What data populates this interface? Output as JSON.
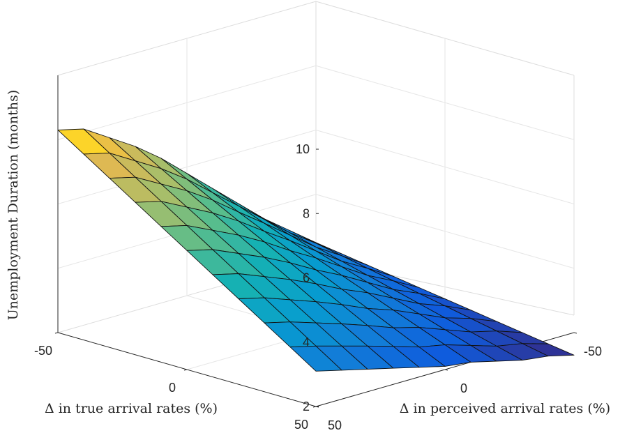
{
  "chart_data": {
    "type": "surface",
    "zlabel": "Unemployment Duration (months)",
    "xlabel": "Δ in true arrival rates (%)",
    "ylabel": "Δ in perceived arrival rates (%)",
    "xlim": [
      -50,
      50
    ],
    "ylim": [
      -50,
      50
    ],
    "zlim": [
      2,
      10
    ],
    "x_ticks": [
      "-50",
      "0",
      "50"
    ],
    "y_ticks": [
      "-50",
      "0",
      "50"
    ],
    "z_ticks": [
      "2",
      "4",
      "6",
      "8",
      "10"
    ],
    "x": [
      -50,
      -40,
      -30,
      -20,
      -10,
      0,
      10,
      20,
      30,
      40,
      50
    ],
    "y": [
      -50,
      -40,
      -30,
      -20,
      -10,
      0,
      10,
      20,
      30,
      40,
      50
    ],
    "z_at_true_-50": [
      2.5,
      3.1,
      3.7,
      4.4,
      5.1,
      5.8,
      6.5,
      7.1,
      7.6,
      8.1,
      8.3
    ],
    "z_at_true_50": [
      1.3,
      1.5,
      1.6,
      1.8,
      2.0,
      2.1,
      2.3,
      2.5,
      2.7,
      2.9,
      3.1
    ],
    "grid": true,
    "colormap": "parula"
  }
}
